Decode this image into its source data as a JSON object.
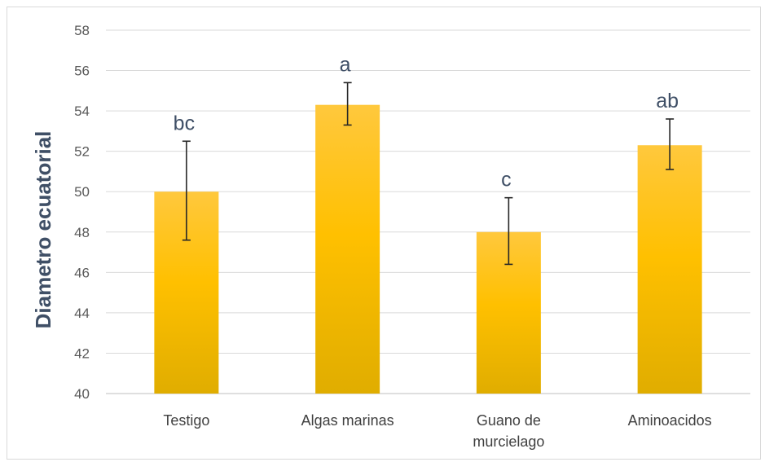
{
  "chart_data": {
    "type": "bar",
    "title": "",
    "xlabel": "",
    "ylabel": "Diametro ecuatorial",
    "ylim": [
      40,
      58
    ],
    "yticks": [
      40,
      42,
      44,
      46,
      48,
      50,
      52,
      54,
      56,
      58
    ],
    "grid": true,
    "legend": "none",
    "categories": [
      [
        "Testigo"
      ],
      [
        "Algas marinas"
      ],
      [
        "Guano de",
        "murcielago"
      ],
      [
        "Aminoacidos"
      ]
    ],
    "values": [
      50.0,
      54.3,
      48.0,
      52.3
    ],
    "error_low": [
      47.6,
      53.3,
      46.4,
      51.1
    ],
    "error_high": [
      52.5,
      55.4,
      49.7,
      53.6
    ],
    "significance_labels": [
      "bc",
      "a",
      "c",
      "ab"
    ],
    "colors": {
      "bar_top": "#ffc83d",
      "bar_mid": "#ffc000",
      "bar_bottom": "#e0ad00",
      "grid": "#d9d9d9",
      "error": "#262626"
    }
  }
}
